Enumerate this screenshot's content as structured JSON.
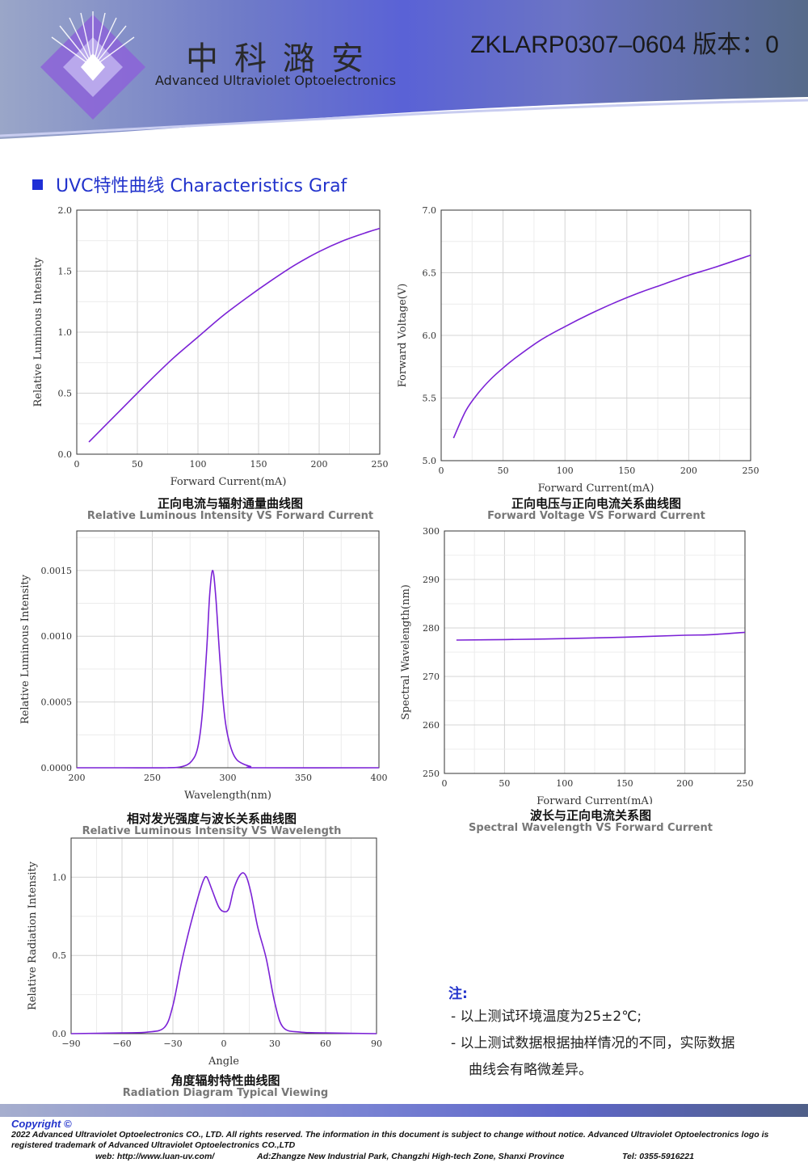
{
  "header": {
    "brand_cn": "中科潞安",
    "brand_en": "Advanced Ultraviolet Optoelectronics",
    "doc_id": "ZKLARP0307–0604 版本：0"
  },
  "section": {
    "title": "UVC特性曲线 Characteristics Graf"
  },
  "chart_data": [
    {
      "id": "c1",
      "type": "line",
      "caption_cn": "正向电流与辐射通量曲线图",
      "caption_en": "Relative Luminous Intensity VS Forward Current",
      "xlabel": "Forward Current(mA)",
      "ylabel": "Relative Luminous Intensity",
      "xlim": [
        0,
        250
      ],
      "ylim": [
        0,
        2.0
      ],
      "xticks": [
        "0",
        "50",
        "100",
        "150",
        "200",
        "250"
      ],
      "xtick_values": [
        0,
        50,
        100,
        150,
        200,
        250
      ],
      "yticks": [
        "0.0",
        "0.5",
        "1.0",
        "1.5",
        "2.0"
      ],
      "ytick_values": [
        0,
        0.5,
        1.0,
        1.5,
        2.0
      ],
      "x": [
        10,
        20,
        40,
        60,
        80,
        100,
        120,
        140,
        160,
        180,
        200,
        220,
        240,
        250
      ],
      "y": [
        0.1,
        0.2,
        0.4,
        0.6,
        0.79,
        0.96,
        1.13,
        1.28,
        1.42,
        1.55,
        1.66,
        1.75,
        1.82,
        1.85
      ],
      "grid": true
    },
    {
      "id": "c2",
      "type": "line",
      "caption_cn": "正向电压与正向电流关系曲线图",
      "caption_en": "Forward Voltage VS Forward Current",
      "xlabel": "Forward Current(mA)",
      "ylabel": "Forward Voltage(V)",
      "xlim": [
        0,
        250
      ],
      "ylim": [
        5.0,
        7.0
      ],
      "xticks": [
        "0",
        "50",
        "100",
        "150",
        "200",
        "250"
      ],
      "xtick_values": [
        0,
        50,
        100,
        150,
        200,
        250
      ],
      "yticks": [
        "5.0",
        "5.5",
        "6.0",
        "6.5",
        "7.0"
      ],
      "ytick_values": [
        5.0,
        5.5,
        6.0,
        6.5,
        7.0
      ],
      "x": [
        10,
        20,
        30,
        40,
        50,
        60,
        80,
        100,
        120,
        140,
        160,
        180,
        200,
        220,
        250
      ],
      "y": [
        5.18,
        5.4,
        5.54,
        5.65,
        5.74,
        5.82,
        5.96,
        6.07,
        6.17,
        6.26,
        6.34,
        6.41,
        6.48,
        6.54,
        6.64
      ],
      "grid": true
    },
    {
      "id": "c3",
      "type": "line",
      "caption_cn": "相对发光强度与波长关系曲线图",
      "caption_en": "Relative Luminous Intensity VS Wavelength",
      "xlabel": "Wavelength(nm)",
      "ylabel": "Relative Luminous Intensity",
      "xlim": [
        200,
        400
      ],
      "ylim": [
        0,
        0.0018
      ],
      "xticks": [
        "200",
        "250",
        "300",
        "350",
        "400"
      ],
      "xtick_values": [
        200,
        250,
        300,
        350,
        400
      ],
      "yticks": [
        "0.0000",
        "0.0005",
        "0.0010",
        "0.0015"
      ],
      "ytick_values": [
        0,
        0.0005,
        0.001,
        0.0015
      ],
      "x": [
        200,
        230,
        260,
        270,
        276,
        280,
        283,
        286,
        288,
        290,
        292,
        294,
        296,
        298,
        300,
        303,
        306,
        310,
        315,
        320,
        400
      ],
      "y": [
        0,
        0,
        0,
        1e-05,
        5e-05,
        0.00015,
        0.0004,
        0.0009,
        0.00132,
        0.0015,
        0.0013,
        0.00095,
        0.00062,
        0.00038,
        0.00024,
        0.00012,
        6e-05,
        3e-05,
        1e-05,
        0,
        0
      ],
      "grid": true
    },
    {
      "id": "c4",
      "type": "line",
      "caption_cn": "波长与正向电流关系图",
      "caption_en": "Spectral Wavelength VS Forward Current",
      "xlabel": "Forward Current(mA)",
      "ylabel": "Spectral Wavelength(nm)",
      "xlim": [
        0,
        250
      ],
      "ylim": [
        250,
        300
      ],
      "xticks": [
        "0",
        "50",
        "100",
        "150",
        "200",
        "250"
      ],
      "xtick_values": [
        0,
        50,
        100,
        150,
        200,
        250
      ],
      "yticks": [
        "250",
        "260",
        "270",
        "280",
        "290",
        "300"
      ],
      "ytick_values": [
        250,
        260,
        270,
        280,
        290,
        300
      ],
      "x": [
        10,
        50,
        100,
        150,
        200,
        220,
        250
      ],
      "y": [
        277.5,
        277.6,
        277.8,
        278.1,
        278.5,
        278.6,
        279.1
      ],
      "grid": true
    },
    {
      "id": "c5",
      "type": "line",
      "caption_cn": "角度辐射特性曲线图",
      "caption_en": "Radiation Diagram Typical Viewing",
      "xlabel": "Angle",
      "ylabel": "Relative Radiation Intensity",
      "xlim": [
        -90,
        90
      ],
      "ylim": [
        0,
        1.25
      ],
      "xticks": [
        "−90",
        "−60",
        "−30",
        "0",
        "30",
        "60",
        "90"
      ],
      "xtick_values": [
        -90,
        -60,
        -30,
        0,
        30,
        60,
        90
      ],
      "yticks": [
        "0.0",
        "0.5",
        "1.0"
      ],
      "ytick_values": [
        0,
        0.5,
        1.0
      ],
      "x": [
        -90,
        -60,
        -45,
        -35,
        -30,
        -25,
        -20,
        -15,
        -12,
        -10,
        -7,
        -3,
        0,
        3,
        6,
        10,
        13,
        16,
        20,
        25,
        30,
        35,
        45,
        60,
        90
      ],
      "y": [
        0,
        0.005,
        0.01,
        0.04,
        0.18,
        0.45,
        0.68,
        0.88,
        0.98,
        1.0,
        0.92,
        0.81,
        0.78,
        0.8,
        0.93,
        1.02,
        1.01,
        0.9,
        0.68,
        0.48,
        0.2,
        0.04,
        0.01,
        0.005,
        0
      ],
      "grid": true
    }
  ],
  "notes": {
    "heading": "注:",
    "line1": "-  以上测试环境温度为25±2℃;",
    "line2": "-  以上测试数据根据抽样情况的不同，实际数据",
    "line3": "曲线会有略微差异。"
  },
  "footer": {
    "copyright": "Copyright ©",
    "legal": "2022 Advanced Ultraviolet Optoelectronics CO., LTD. All rights reserved. The information in this document is subject to change without notice. Advanced Ultraviolet Optoelectronics logo is registered trademark of Advanced Ultraviolet Optoelectronics CO.,LTD",
    "web": "web: http://www.luan-uv.com/",
    "address": "Ad:Zhangze New Industrial Park, Changzhi High-tech Zone, Shanxi Province",
    "tel": "Tel:  0355-5916221"
  },
  "colors": {
    "curve": "#7b22d6",
    "accent": "#2233cc"
  }
}
